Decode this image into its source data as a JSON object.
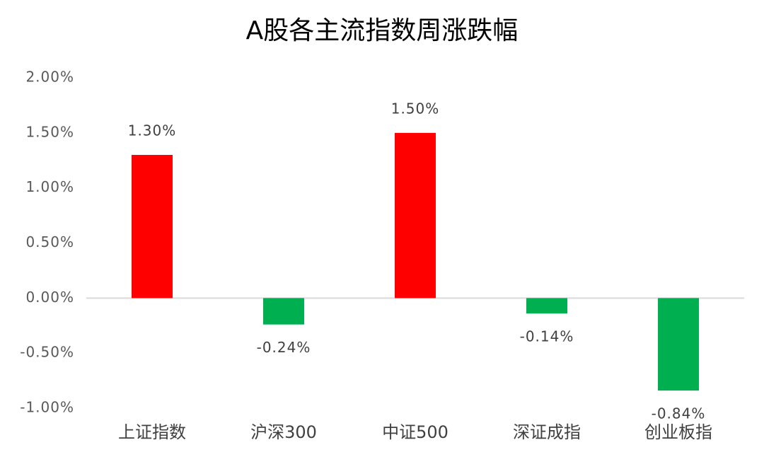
{
  "chart_data": {
    "type": "bar",
    "title": "A股各主流指数周涨跌幅",
    "categories": [
      "上证指数",
      "沪深300",
      "中证500",
      "深证成指",
      "创业板指"
    ],
    "values": [
      1.3,
      -0.24,
      1.5,
      -0.14,
      -0.84
    ],
    "value_labels": [
      "1.30%",
      "-0.24%",
      "1.50%",
      "-0.14%",
      "-0.84%"
    ],
    "colors": [
      "#ff0000",
      "#00b050",
      "#ff0000",
      "#00b050",
      "#00b050"
    ],
    "ylim": [
      -1,
      2
    ],
    "yticks": [
      {
        "value": -1,
        "label": "-1.00%"
      },
      {
        "value": -0.5,
        "label": "-0.50%"
      },
      {
        "value": 0,
        "label": "0.00%"
      },
      {
        "value": 0.5,
        "label": "0.50%"
      },
      {
        "value": 1,
        "label": "1.00%"
      },
      {
        "value": 1.5,
        "label": "1.50%"
      },
      {
        "value": 2,
        "label": "2.00%"
      }
    ],
    "grid": false
  }
}
